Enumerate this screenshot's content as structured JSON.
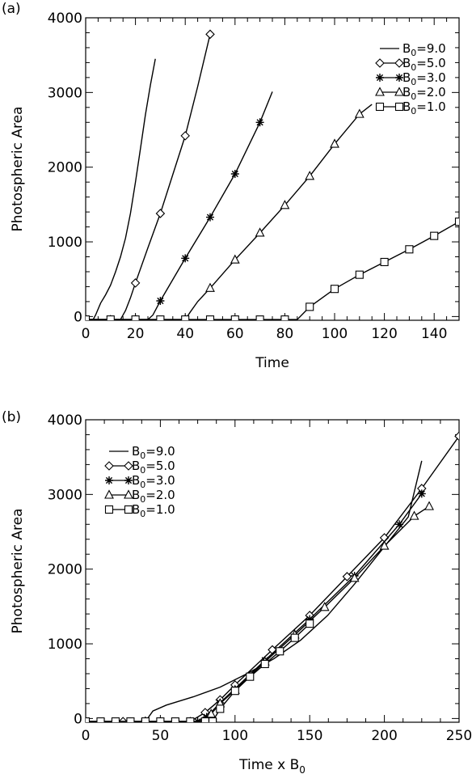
{
  "chart_data": [
    {
      "panel_label": "(a)",
      "type": "line",
      "xlabel": "Time",
      "ylabel": "Photospheric Area",
      "xlim": [
        0,
        150
      ],
      "ylim": [
        -50,
        4000
      ],
      "xticks": [
        "0",
        "20",
        "40",
        "60",
        "80",
        "100",
        "120",
        "140"
      ],
      "yticks": [
        "0",
        "1000",
        "2000",
        "3000",
        "4000"
      ],
      "legend_position": "top-right",
      "series": [
        {
          "name": "B0=9.0",
          "label_main": "B",
          "label_sub": "0",
          "label_tail": "=9.0",
          "marker": "none",
          "x": [
            3,
            4,
            5,
            6,
            8,
            10,
            12,
            14,
            16,
            18,
            20,
            22,
            24,
            26,
            28
          ],
          "y": [
            -40,
            20,
            100,
            180,
            290,
            420,
            600,
            800,
            1050,
            1380,
            1800,
            2250,
            2700,
            3100,
            3450
          ]
        },
        {
          "name": "B0=5.0",
          "label_main": "B",
          "label_sub": "0",
          "label_tail": "=5.0",
          "marker": "diamond",
          "x": [
            0,
            5,
            10,
            14,
            16,
            18,
            20,
            25,
            30,
            35,
            40,
            45,
            50
          ],
          "y": [
            -40,
            -40,
            -40,
            -40,
            80,
            250,
            450,
            920,
            1380,
            1900,
            2420,
            3080,
            3780
          ]
        },
        {
          "name": "B0=3.0",
          "label_main": "B",
          "label_sub": "0",
          "label_tail": "=3.0",
          "marker": "asterisk",
          "x": [
            0,
            10,
            20,
            25,
            27,
            30,
            40,
            50,
            60,
            70,
            75
          ],
          "y": [
            -40,
            -40,
            -40,
            -40,
            20,
            210,
            780,
            1330,
            1910,
            2600,
            3010
          ]
        },
        {
          "name": "B0=2.0",
          "label_main": "B",
          "label_sub": "0",
          "label_tail": "=2.0",
          "marker": "triangle",
          "x": [
            0,
            20,
            40,
            42,
            45,
            50,
            60,
            70,
            80,
            90,
            100,
            110,
            115
          ],
          "y": [
            -40,
            -40,
            -40,
            60,
            200,
            380,
            760,
            1120,
            1490,
            1880,
            2310,
            2710,
            2840
          ]
        },
        {
          "name": "B0=1.0",
          "label_main": "B",
          "label_sub": "0",
          "label_tail": "=1.0",
          "marker": "square",
          "x": [
            0,
            10,
            20,
            30,
            40,
            50,
            60,
            70,
            80,
            85,
            90,
            100,
            110,
            120,
            130,
            140,
            150
          ],
          "y": [
            -40,
            -40,
            -40,
            -40,
            -40,
            -40,
            -40,
            -40,
            -40,
            -40,
            130,
            370,
            560,
            730,
            900,
            1080,
            1270
          ]
        }
      ]
    },
    {
      "panel_label": "(b)",
      "type": "line",
      "xlabel_main": "Time x B",
      "xlabel_sub": "0",
      "ylabel": "Photospheric Area",
      "xlim": [
        0,
        250
      ],
      "ylim": [
        -50,
        4000
      ],
      "xticks": [
        "0",
        "50",
        "100",
        "150",
        "200",
        "250"
      ],
      "yticks": [
        "0",
        "1000",
        "2000",
        "3000",
        "4000"
      ],
      "legend_position": "top-left",
      "series": [
        {
          "name": "B0=9.0",
          "label_main": "B",
          "label_sub": "0",
          "label_tail": "=9.0",
          "marker": "none",
          "x": [
            40,
            45,
            54,
            72,
            90,
            108,
            126,
            144,
            162,
            180,
            198,
            216,
            225
          ],
          "y": [
            -40,
            100,
            180,
            290,
            420,
            600,
            800,
            1050,
            1380,
            1800,
            2250,
            2700,
            3450
          ]
        },
        {
          "name": "B0=5.0",
          "label_main": "B",
          "label_sub": "0",
          "label_tail": "=5.0",
          "marker": "diamond",
          "x": [
            0,
            25,
            50,
            70,
            80,
            90,
            100,
            125,
            150,
            175,
            200,
            225,
            250
          ],
          "y": [
            -40,
            -40,
            -40,
            -40,
            80,
            250,
            450,
            920,
            1380,
            1900,
            2420,
            3080,
            3780
          ]
        },
        {
          "name": "B0=3.0",
          "label_main": "B",
          "label_sub": "0",
          "label_tail": "=3.0",
          "marker": "asterisk",
          "x": [
            0,
            30,
            60,
            75,
            81,
            90,
            120,
            150,
            180,
            210,
            225
          ],
          "y": [
            -40,
            -40,
            -40,
            -40,
            20,
            210,
            780,
            1330,
            1910,
            2600,
            3010
          ]
        },
        {
          "name": "B0=2.0",
          "label_main": "B",
          "label_sub": "0",
          "label_tail": "=2.0",
          "marker": "triangle",
          "x": [
            0,
            40,
            80,
            84,
            90,
            100,
            120,
            140,
            160,
            180,
            200,
            220,
            230
          ],
          "y": [
            -40,
            -40,
            -40,
            60,
            200,
            380,
            760,
            1120,
            1490,
            1880,
            2310,
            2710,
            2840
          ]
        },
        {
          "name": "B0=1.0",
          "label_main": "B",
          "label_sub": "0",
          "label_tail": "=1.0",
          "marker": "square",
          "x": [
            0,
            10,
            20,
            30,
            40,
            50,
            60,
            70,
            80,
            85,
            90,
            100,
            110,
            120,
            130,
            140,
            150
          ],
          "y": [
            -40,
            -40,
            -40,
            -40,
            -40,
            -40,
            -40,
            -40,
            -40,
            -40,
            130,
            370,
            560,
            730,
            900,
            1080,
            1270
          ]
        }
      ]
    }
  ]
}
